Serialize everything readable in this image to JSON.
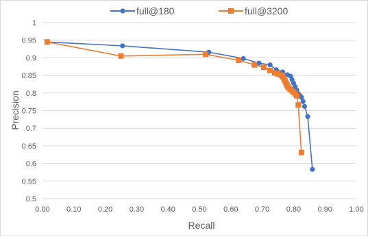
{
  "chart_data": {
    "type": "line",
    "title": "",
    "xlabel": "Recall",
    "ylabel": "Precision",
    "xlim": [
      0,
      1
    ],
    "ylim": [
      0.5,
      1
    ],
    "x_ticks": [
      "0.00",
      "0.10",
      "0.20",
      "0.30",
      "0.40",
      "0.50",
      "0.60",
      "0.70",
      "0.80",
      "0.90",
      "1.00"
    ],
    "y_ticks": [
      "0.5",
      "0.55",
      "0.6",
      "0.65",
      "0.7",
      "0.75",
      "0.8",
      "0.85",
      "0.9",
      "0.95",
      "1"
    ],
    "grid": "horizontal",
    "legend_position": "top",
    "series": [
      {
        "name": "full@180",
        "color": "#4472c4",
        "marker": "circle",
        "points": [
          [
            0.015,
            0.945
          ],
          [
            0.255,
            0.934
          ],
          [
            0.53,
            0.916
          ],
          [
            0.64,
            0.898
          ],
          [
            0.69,
            0.885
          ],
          [
            0.725,
            0.88
          ],
          [
            0.745,
            0.866
          ],
          [
            0.765,
            0.86
          ],
          [
            0.78,
            0.852
          ],
          [
            0.79,
            0.848
          ],
          [
            0.795,
            0.838
          ],
          [
            0.8,
            0.828
          ],
          [
            0.805,
            0.818
          ],
          [
            0.81,
            0.808
          ],
          [
            0.815,
            0.798
          ],
          [
            0.82,
            0.793
          ],
          [
            0.825,
            0.788
          ],
          [
            0.83,
            0.776
          ],
          [
            0.835,
            0.762
          ],
          [
            0.845,
            0.733
          ],
          [
            0.86,
            0.583
          ]
        ]
      },
      {
        "name": "full@3200",
        "color": "#ed7d31",
        "marker": "square",
        "points": [
          [
            0.015,
            0.945
          ],
          [
            0.25,
            0.905
          ],
          [
            0.52,
            0.91
          ],
          [
            0.625,
            0.893
          ],
          [
            0.675,
            0.88
          ],
          [
            0.705,
            0.873
          ],
          [
            0.725,
            0.864
          ],
          [
            0.74,
            0.857
          ],
          [
            0.75,
            0.854
          ],
          [
            0.76,
            0.851
          ],
          [
            0.765,
            0.846
          ],
          [
            0.77,
            0.84
          ],
          [
            0.773,
            0.834
          ],
          [
            0.776,
            0.828
          ],
          [
            0.779,
            0.823
          ],
          [
            0.782,
            0.818
          ],
          [
            0.786,
            0.813
          ],
          [
            0.79,
            0.81
          ],
          [
            0.796,
            0.806
          ],
          [
            0.8,
            0.802
          ],
          [
            0.805,
            0.797
          ],
          [
            0.81,
            0.792
          ],
          [
            0.815,
            0.766
          ],
          [
            0.825,
            0.631
          ]
        ]
      }
    ]
  }
}
